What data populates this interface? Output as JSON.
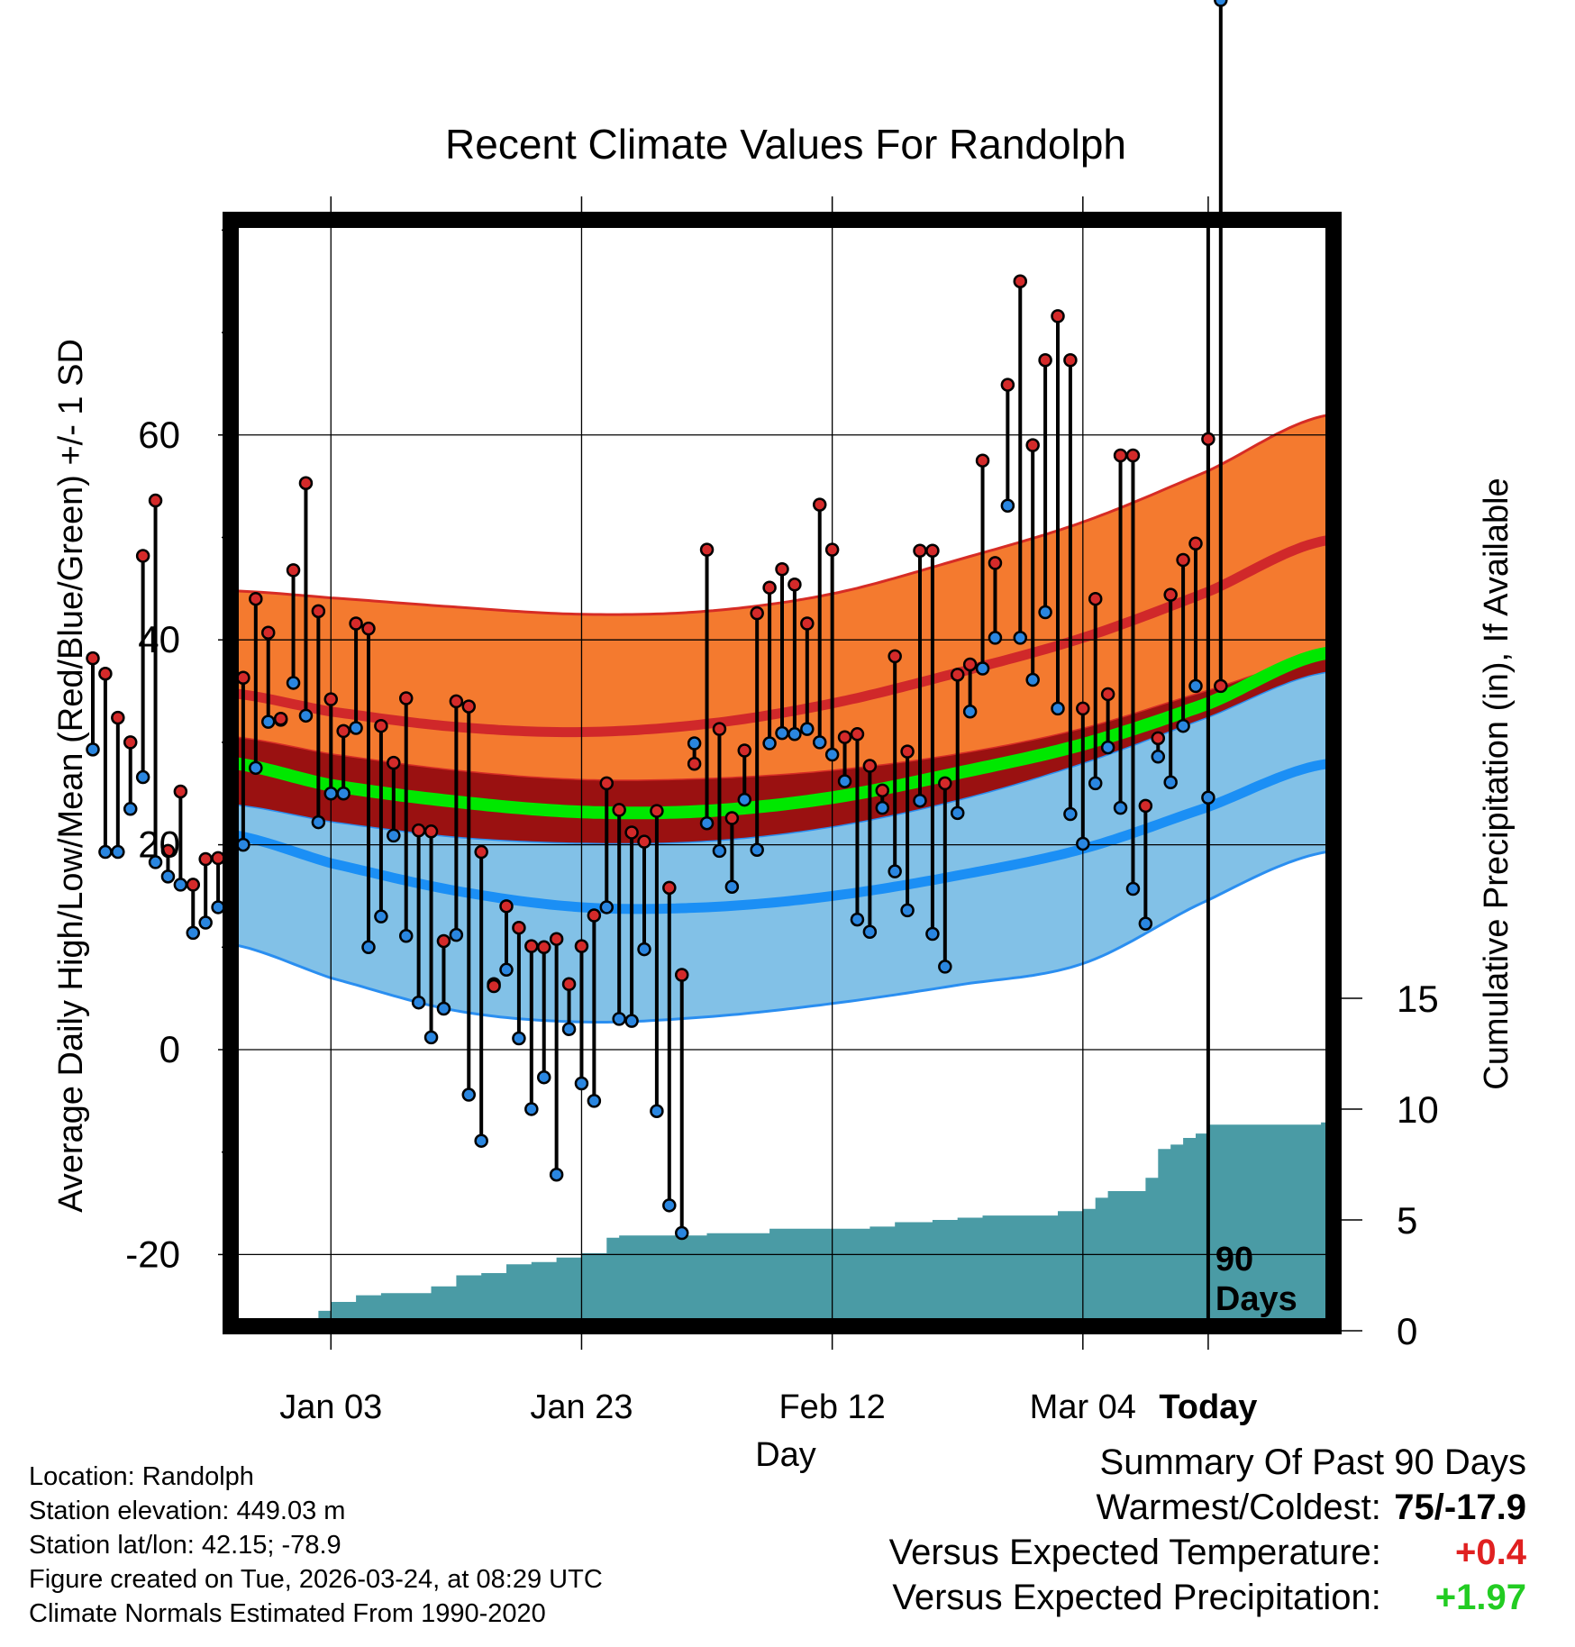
{
  "colors": {
    "high_band": "#f47a2f",
    "high_band_edge": "#d62c25",
    "mean_high_line": "#d0282a",
    "low_band": "#82c1e7",
    "low_band_edge": "#2a8ef0",
    "mean_low_line": "#1b8ff5",
    "overlap": "#9a1111",
    "mean_line": "#00e800",
    "high_dot": "#d42a2a",
    "low_dot": "#2a86e0",
    "precip_fill": "#4a9ba5",
    "positive_temp": "#e02020",
    "positive_precip": "#22cc22"
  },
  "chart_data": {
    "type": "line",
    "title": "Recent Climate Values For Randolph",
    "xlabel": "Day",
    "ylabel_left": "Average Daily High/Low/Mean (Red/Blue/Green) +/- 1 SD",
    "ylabel_right": "Cumulative Precipitation (in), If Available",
    "x_range": [
      -78,
      10
    ],
    "y_range_left": [
      -27,
      81
    ],
    "y_ticks_left": [
      -20,
      0,
      20,
      40,
      60
    ],
    "y_ticks_right": [
      0,
      5,
      10,
      15
    ],
    "y_range_right_precip": [
      0,
      15
    ],
    "x_ticks": [
      {
        "day": -70,
        "label": "Jan 03"
      },
      {
        "day": -50,
        "label": "Jan 23"
      },
      {
        "day": -30,
        "label": "Feb 12"
      },
      {
        "day": -10,
        "label": "Mar 04"
      },
      {
        "day": 0,
        "label": "Today"
      }
    ],
    "today_label": "90 Days",
    "grid": true,
    "normals_days": [
      -78,
      -70,
      -60,
      -50,
      -40,
      -30,
      -20,
      -10,
      0,
      9
    ],
    "normal_high_upper": [
      44.8,
      44.1,
      43.2,
      42.5,
      42.8,
      44.5,
      47.8,
      51.5,
      56.5,
      61.8
    ],
    "normal_high_mean": [
      34.8,
      33.0,
      31.5,
      31.0,
      31.8,
      33.8,
      36.8,
      40.2,
      44.7,
      49.6
    ],
    "normal_high_lower": [
      30.5,
      28.8,
      27.2,
      26.3,
      26.4,
      27.2,
      28.8,
      31.3,
      35.0,
      38.2
    ],
    "normal_mean": [
      28.0,
      25.8,
      24.2,
      23.2,
      23.3,
      24.6,
      27.0,
      29.8,
      33.8,
      38.6
    ],
    "normal_low_upper": [
      24.0,
      22.3,
      20.8,
      20.2,
      20.4,
      21.8,
      24.4,
      28.0,
      32.5,
      36.8
    ],
    "normal_low_mean": [
      21.0,
      18.2,
      15.5,
      13.9,
      13.9,
      15.0,
      17.0,
      19.6,
      23.7,
      27.8
    ],
    "normal_low_lower": [
      10.3,
      7.0,
      3.8,
      2.7,
      3.2,
      4.5,
      6.3,
      8.4,
      14.6,
      19.2
    ],
    "daily_highs": [
      38.2,
      36.7,
      32.4,
      30.0,
      48.2,
      53.6,
      19.4,
      25.2,
      16.1,
      18.6,
      18.7,
      22.8,
      36.3,
      44.0,
      40.7,
      32.3,
      46.8,
      55.3,
      42.8,
      34.2,
      31.1,
      41.6,
      41.1,
      31.6,
      28.0,
      34.3,
      21.4,
      21.3,
      10.6,
      34.0,
      33.5,
      19.3,
      6.2,
      14.0,
      11.9,
      10.1,
      10.0,
      10.8,
      6.4,
      10.1,
      13.1,
      26.0,
      23.4,
      21.2,
      20.3,
      23.3,
      15.8,
      7.3,
      27.9,
      48.8,
      31.3,
      22.6,
      29.2,
      42.6,
      45.1,
      46.9,
      45.4,
      41.6,
      53.2,
      48.8,
      30.5,
      30.8,
      27.7,
      25.3,
      38.4,
      29.1,
      48.7,
      48.7,
      26.0,
      36.6,
      37.6,
      57.5,
      47.5,
      64.9,
      75.0,
      59.0,
      67.3,
      71.6,
      67.3,
      33.3,
      44.0,
      34.7,
      58.0,
      58.0,
      23.8,
      30.4,
      44.4,
      47.8,
      49.4,
      59.6,
      35.5
    ],
    "daily_lows": [
      29.3,
      19.3,
      19.3,
      23.5,
      26.6,
      18.3,
      16.9,
      16.1,
      11.4,
      12.4,
      13.9,
      17.3,
      20.0,
      27.5,
      32.0,
      32.2,
      35.8,
      32.6,
      22.2,
      25.0,
      25.0,
      31.4,
      10.0,
      13.0,
      20.9,
      11.1,
      4.6,
      1.2,
      4.0,
      11.2,
      -4.4,
      -8.9,
      6.4,
      7.8,
      1.1,
      -5.8,
      -2.7,
      -12.2,
      2.0,
      -3.3,
      -5.0,
      13.9,
      3.0,
      2.8,
      9.8,
      -6.0,
      -15.2,
      -17.9,
      29.9,
      22.1,
      19.4,
      15.9,
      24.4,
      19.5,
      29.9,
      30.9,
      30.8,
      31.3,
      30.0,
      28.8,
      26.2,
      12.7,
      11.5,
      23.6,
      17.4,
      13.6,
      24.3,
      11.3,
      8.1,
      23.1,
      33.0,
      37.2,
      40.2,
      53.1,
      40.2,
      36.1,
      42.7,
      33.3,
      23.0,
      20.1,
      26.0,
      29.5,
      23.6,
      15.7,
      12.3,
      28.6,
      26.1,
      31.6,
      35.5,
      24.6
    ],
    "precip_days": [
      -75,
      -73,
      -71,
      -70,
      -68,
      -66,
      -64,
      -62,
      -61,
      -60,
      -58,
      -56,
      -54,
      -52,
      -50,
      -49,
      -48,
      -47,
      -45,
      -40,
      -35,
      -30,
      -27,
      -25,
      -22,
      -20,
      -18,
      -15,
      -12,
      -10,
      -9,
      -8,
      -7,
      -5,
      -4,
      -3,
      -2,
      -1,
      0,
      9
    ],
    "precip_cum": [
      0.0,
      0.5,
      0.9,
      1.3,
      1.6,
      1.7,
      1.7,
      2.0,
      2.0,
      2.5,
      2.6,
      3.0,
      3.1,
      3.3,
      3.5,
      3.5,
      4.2,
      4.3,
      4.3,
      4.4,
      4.6,
      4.6,
      4.7,
      4.9,
      5.0,
      5.1,
      5.2,
      5.2,
      5.4,
      5.5,
      6.0,
      6.3,
      6.3,
      6.9,
      8.2,
      8.4,
      8.7,
      8.9,
      9.3,
      9.4
    ]
  },
  "info": {
    "location": "Location: Randolph",
    "elevation": "Station elevation: 449.03 m",
    "latlon": "Station lat/lon: 42.15; -78.9",
    "created": "Figure created on Tue, 2026-03-24, at 08:29 UTC",
    "normals": "Climate Normals Estimated From 1990-2020"
  },
  "summary": {
    "heading": "Summary Of Past 90 Days",
    "warmest_label": "Warmest/Coldest:",
    "warmest_value": "75/-17.9",
    "temp_label": "Versus Expected Temperature:",
    "temp_value": "+0.4",
    "precip_label": "Versus Expected Precipitation:",
    "precip_value": "+1.97"
  }
}
